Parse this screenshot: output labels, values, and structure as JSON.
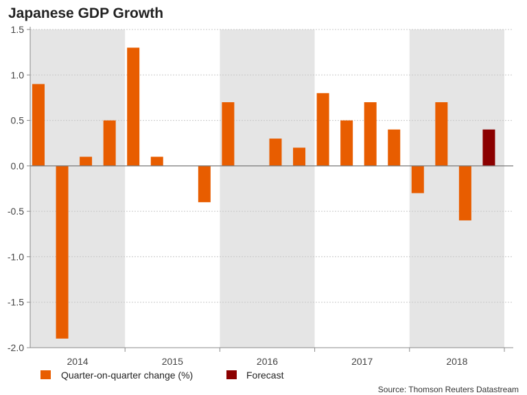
{
  "chart_data": {
    "type": "bar",
    "title": "Japanese GDP Growth",
    "source": "Source: Thomson Reuters Datastream",
    "ylim": [
      -2.0,
      1.5
    ],
    "yticks": [
      "1.5",
      "1.0",
      "0.5",
      "0.0",
      "-0.5",
      "-1.0",
      "-1.5",
      "-2.0"
    ],
    "ytick_values": [
      1.5,
      1.0,
      0.5,
      0.0,
      -0.5,
      -1.0,
      -1.5,
      -2.0
    ],
    "year_labels": [
      "2014",
      "2015",
      "2016",
      "2017",
      "2018"
    ],
    "quarters_per_year": 4,
    "grid": true,
    "legend_position": "bottom-left",
    "series": [
      {
        "name": "Quarter-on-quarter change (%)",
        "color": "#e85d00",
        "values": [
          0.9,
          -1.9,
          0.1,
          0.5,
          1.3,
          0.1,
          0.0,
          -0.4,
          0.7,
          0.0,
          0.3,
          0.2,
          0.8,
          0.5,
          0.7,
          0.4,
          -0.3,
          0.7,
          -0.6,
          null
        ]
      },
      {
        "name": "Forecast",
        "color": "#8b0000",
        "values": [
          null,
          null,
          null,
          null,
          null,
          null,
          null,
          null,
          null,
          null,
          null,
          null,
          null,
          null,
          null,
          null,
          null,
          null,
          null,
          0.4
        ]
      }
    ],
    "band_color": "#e5e5e5"
  }
}
